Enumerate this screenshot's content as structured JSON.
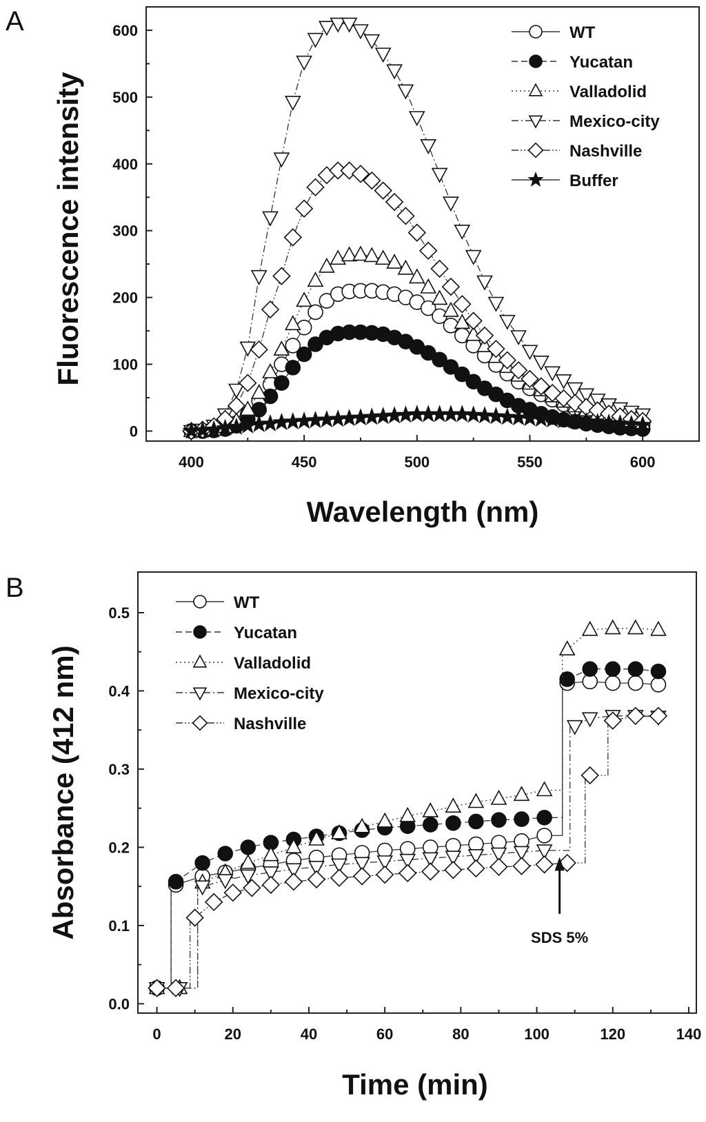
{
  "panels": [
    {
      "letter": "A",
      "chart_data": {
        "type": "line",
        "xlabel": "Wavelength (nm)",
        "ylabel": "Fluorescence intensity",
        "xlim": [
          380,
          625
        ],
        "ylim": [
          -15,
          635
        ],
        "xticks": [
          400,
          450,
          500,
          550,
          600
        ],
        "yticks": [
          0,
          100,
          200,
          300,
          400,
          500,
          600
        ],
        "legend_position": "top-right",
        "x": [
          400,
          405,
          410,
          415,
          420,
          425,
          430,
          435,
          440,
          445,
          450,
          455,
          460,
          465,
          470,
          475,
          480,
          485,
          490,
          495,
          500,
          505,
          510,
          515,
          520,
          525,
          530,
          535,
          540,
          545,
          550,
          555,
          560,
          565,
          570,
          575,
          580,
          585,
          590,
          595,
          600
        ],
        "series": [
          {
            "name": "WT",
            "marker": "circle-open",
            "dash": "solid",
            "values": [
              0,
              0,
              2,
              5,
              12,
              25,
              45,
              70,
              100,
              128,
              155,
              178,
              195,
              205,
              209,
              210,
              210,
              208,
              205,
              200,
              193,
              184,
              172,
              158,
              143,
              128,
              113,
              99,
              86,
              74,
              64,
              55,
              47,
              40,
              34,
              29,
              24,
              20,
              16,
              13,
              10
            ]
          },
          {
            "name": "Yucatan",
            "marker": "circle-filled",
            "dash": "dashed",
            "values": [
              0,
              0,
              1,
              3,
              8,
              18,
              32,
              52,
              72,
              95,
              115,
              130,
              140,
              146,
              148,
              148,
              147,
              145,
              140,
              134,
              126,
              117,
              107,
              96,
              85,
              74,
              64,
              55,
              46,
              38,
              32,
              26,
              21,
              17,
              14,
              11,
              9,
              7,
              5,
              4,
              3
            ]
          },
          {
            "name": "Valladolid",
            "marker": "triangle-up-open",
            "dash": "dotted",
            "values": [
              0,
              0,
              2,
              6,
              15,
              32,
              57,
              88,
              122,
              160,
              195,
              225,
              246,
              258,
              263,
              264,
              262,
              258,
              252,
              243,
              230,
              215,
              198,
              180,
              162,
              144,
              127,
              111,
              96,
              83,
              71,
              61,
              52,
              44,
              37,
              31,
              26,
              22,
              18,
              15,
              12
            ]
          },
          {
            "name": "Mexico-city",
            "marker": "triangle-down-open",
            "dash": "dashdot",
            "values": [
              0,
              2,
              8,
              25,
              62,
              125,
              232,
              320,
              408,
              493,
              553,
              587,
              605,
              610,
              610,
              600,
              585,
              565,
              540,
              510,
              470,
              428,
              385,
              342,
              300,
              262,
              224,
              192,
              165,
              142,
              120,
              104,
              88,
              76,
              64,
              55,
              47,
              40,
              34,
              29,
              25
            ]
          },
          {
            "name": "Nashville",
            "marker": "diamond-open",
            "dash": "dashdotdot",
            "values": [
              0,
              2,
              7,
              18,
              38,
              72,
              122,
              182,
              232,
              290,
              333,
              365,
              383,
              390,
              390,
              385,
              375,
              360,
              343,
              322,
              297,
              270,
              243,
              216,
              190,
              165,
              143,
              123,
              106,
              91,
              78,
              67,
              57,
              49,
              42,
              36,
              31,
              26,
              22,
              18,
              15
            ]
          },
          {
            "name": "Buffer",
            "marker": "star-filled",
            "dash": "solid",
            "values": [
              0,
              1,
              2,
              4,
              6,
              8,
              10,
              11,
              13,
              14,
              15,
              16,
              17,
              18,
              19,
              20,
              21,
              22,
              23,
              24,
              25,
              25,
              25,
              25,
              25,
              24,
              23,
              22,
              21,
              20,
              19,
              18,
              17,
              16,
              15,
              14,
              13,
              12,
              11,
              10,
              9
            ]
          }
        ]
      }
    },
    {
      "letter": "B",
      "chart_data": {
        "type": "line",
        "xlabel": "Time (min)",
        "ylabel": "Absorbance (412 nm)",
        "xlim": [
          -5,
          142
        ],
        "ylim": [
          -0.012,
          0.552
        ],
        "xticks": [
          0,
          20,
          40,
          60,
          80,
          100,
          120,
          140
        ],
        "yticks": [
          "0.0",
          "0.1",
          "0.2",
          "0.3",
          "0.4",
          "0.5"
        ],
        "legend_position": "top-left",
        "annotations": [
          {
            "text": "SDS 5%",
            "arrow_x": 106,
            "arrow_y_tip": 0.2,
            "arrow_y_base": 0.115
          }
        ],
        "series": [
          {
            "name": "WT",
            "marker": "circle-open",
            "dash": "solid",
            "x": [
              0,
              5,
              12,
              18,
              24,
              30,
              36,
              42,
              48,
              54,
              60,
              66,
              72,
              78,
              84,
              90,
              96,
              102,
              108,
              114,
              120,
              126,
              132
            ],
            "values": [
              0.02,
              0.152,
              0.163,
              0.168,
              0.173,
              0.178,
              0.183,
              0.187,
              0.19,
              0.193,
              0.196,
              0.198,
              0.2,
              0.202,
              0.204,
              0.206,
              0.208,
              0.215,
              0.41,
              0.412,
              0.41,
              0.41,
              0.408
            ]
          },
          {
            "name": "Yucatan",
            "marker": "circle-filled",
            "dash": "dashed",
            "x": [
              0,
              5,
              12,
              18,
              24,
              30,
              36,
              42,
              48,
              54,
              60,
              66,
              72,
              78,
              84,
              90,
              96,
              102,
              108,
              114,
              120,
              126,
              132
            ],
            "values": [
              0.02,
              0.156,
              0.18,
              0.192,
              0.2,
              0.206,
              0.21,
              0.214,
              0.218,
              0.222,
              0.225,
              0.227,
              0.229,
              0.231,
              0.233,
              0.235,
              0.236,
              0.238,
              0.415,
              0.428,
              0.428,
              0.428,
              0.425
            ]
          },
          {
            "name": "Valladolid",
            "marker": "triangle-up-open",
            "dash": "dotted",
            "x": [
              0,
              6,
              12,
              18,
              24,
              30,
              36,
              42,
              48,
              54,
              60,
              66,
              72,
              78,
              84,
              90,
              96,
              102,
              108,
              114,
              120,
              126,
              132
            ],
            "values": [
              0.02,
              0.02,
              0.155,
              0.168,
              0.18,
              0.19,
              0.2,
              0.21,
              0.218,
              0.226,
              0.233,
              0.24,
              0.246,
              0.252,
              0.258,
              0.262,
              0.267,
              0.273,
              0.453,
              0.478,
              0.48,
              0.48,
              0.478
            ]
          },
          {
            "name": "Mexico-city",
            "marker": "triangle-down-open",
            "dash": "dashdot",
            "x": [
              0,
              6,
              12,
              18,
              24,
              30,
              36,
              42,
              48,
              54,
              60,
              66,
              72,
              78,
              84,
              90,
              96,
              102,
              110,
              114,
              120,
              126,
              132
            ],
            "values": [
              0.02,
              0.02,
              0.15,
              0.158,
              0.164,
              0.168,
              0.172,
              0.175,
              0.178,
              0.18,
              0.182,
              0.184,
              0.186,
              0.188,
              0.19,
              0.192,
              0.194,
              0.196,
              0.355,
              0.365,
              0.368,
              0.368,
              0.367
            ]
          },
          {
            "name": "Nashville",
            "marker": "diamond-open",
            "dash": "dashdotdot",
            "x": [
              0,
              5,
              10,
              15,
              20,
              25,
              30,
              36,
              42,
              48,
              54,
              60,
              66,
              72,
              78,
              84,
              90,
              96,
              102,
              108,
              114,
              120,
              126,
              132
            ],
            "values": [
              0.02,
              0.02,
              0.11,
              0.13,
              0.142,
              0.148,
              0.152,
              0.156,
              0.159,
              0.161,
              0.163,
              0.165,
              0.167,
              0.169,
              0.171,
              0.173,
              0.175,
              0.176,
              0.178,
              0.18,
              0.292,
              0.362,
              0.368,
              0.368
            ]
          }
        ]
      }
    }
  ]
}
